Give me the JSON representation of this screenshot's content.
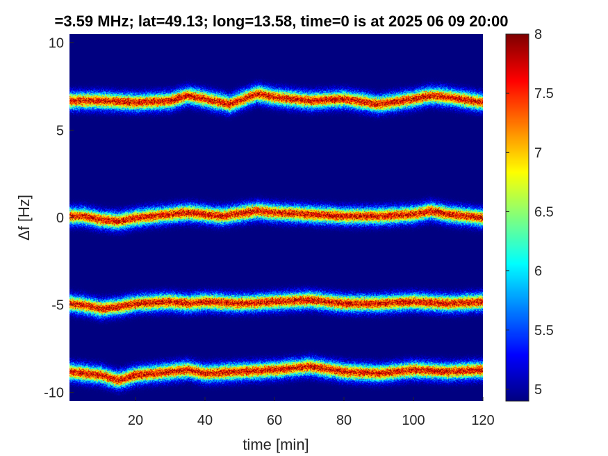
{
  "chart_data": {
    "type": "heatmap",
    "title": "=3.59 MHz;  lat=49.13; long=13.58, time=0 is at 2025 06 09 20:00",
    "xlabel": "time [min]",
    "ylabel": "Δf [Hz]",
    "xlim": [
      1,
      120
    ],
    "ylim": [
      -10.5,
      10.5
    ],
    "xticks": [
      20,
      40,
      60,
      80,
      100,
      120
    ],
    "xtick_labels": [
      "20",
      "40",
      "60",
      "80",
      "100",
      "120"
    ],
    "yticks": [
      -10,
      -5,
      0,
      5,
      10
    ],
    "ytick_labels": [
      "-10",
      "-5",
      "0",
      "5",
      "10"
    ],
    "colorbar": {
      "colormap": "jet",
      "limits": [
        4.9,
        8.0
      ],
      "ticks": [
        5,
        5.5,
        6,
        6.5,
        7,
        7.5,
        8
      ],
      "tick_labels": [
        "5",
        "5.5",
        "6",
        "6.5",
        "7",
        "7.5",
        "8"
      ]
    },
    "background_value": 4.9,
    "bands": [
      {
        "center_hz": 6.7,
        "time_min": [
          1,
          10,
          20,
          30,
          35,
          40,
          47,
          55,
          60,
          70,
          80,
          90,
          100,
          105,
          110,
          120
        ],
        "offset_hz": [
          6.7,
          6.7,
          6.6,
          6.7,
          7.0,
          6.8,
          6.5,
          7.1,
          6.9,
          6.7,
          6.8,
          6.5,
          6.8,
          7.0,
          6.9,
          6.6
        ],
        "peak_value": 8.0
      },
      {
        "center_hz": 0.1,
        "time_min": [
          1,
          5,
          10,
          15,
          20,
          30,
          35,
          45,
          55,
          60,
          70,
          80,
          90,
          100,
          105,
          110,
          120
        ],
        "offset_hz": [
          0.1,
          0.1,
          -0.1,
          -0.2,
          0.0,
          0.2,
          0.3,
          0.1,
          0.4,
          0.3,
          0.2,
          0.1,
          0.1,
          0.2,
          0.4,
          0.2,
          0.0
        ],
        "peak_value": 8.0
      },
      {
        "center_hz": -4.9,
        "time_min": [
          1,
          5,
          10,
          15,
          20,
          30,
          35,
          40,
          50,
          60,
          70,
          80,
          90,
          100,
          110,
          120
        ],
        "offset_hz": [
          -4.9,
          -5.0,
          -5.2,
          -5.1,
          -4.9,
          -4.8,
          -4.9,
          -4.8,
          -4.9,
          -4.8,
          -4.7,
          -4.9,
          -4.9,
          -4.8,
          -4.9,
          -4.8
        ],
        "peak_value": 8.0
      },
      {
        "center_hz": -8.9,
        "time_min": [
          1,
          5,
          10,
          15,
          20,
          30,
          35,
          40,
          50,
          60,
          70,
          80,
          90,
          100,
          110,
          120
        ],
        "offset_hz": [
          -8.8,
          -8.9,
          -9.0,
          -9.3,
          -9.0,
          -8.8,
          -8.7,
          -8.9,
          -8.8,
          -8.7,
          -8.5,
          -8.8,
          -8.9,
          -8.7,
          -8.8,
          -8.7
        ],
        "peak_value": 8.0
      }
    ]
  }
}
